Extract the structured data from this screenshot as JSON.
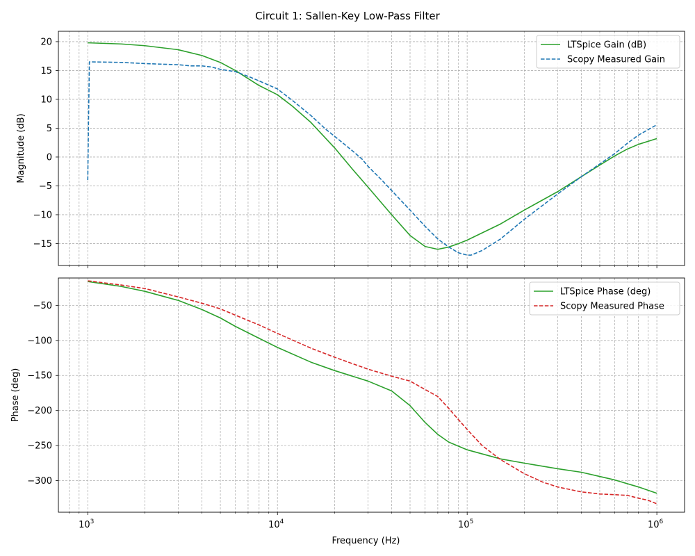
{
  "figure_title": "Circuit 1: Sallen-Key Low-Pass Filter",
  "chart_data": [
    {
      "type": "line",
      "panel": "top",
      "xlabel": "",
      "ylabel": "Magnitude (dB)",
      "xscale": "log",
      "xlim": [
        700,
        1400000
      ],
      "ylim": [
        -18.8,
        21.8
      ],
      "x_ticks": [
        1000,
        10000,
        100000,
        1000000
      ],
      "x_tick_labels": [
        [
          "10",
          "3"
        ],
        [
          "10",
          "4"
        ],
        [
          "10",
          "5"
        ],
        [
          "10",
          "6"
        ]
      ],
      "y_ticks": [
        20,
        15,
        10,
        5,
        0,
        -5,
        -10,
        -15
      ],
      "y_tick_labels": [
        "20",
        "15",
        "10",
        "5",
        "0",
        "−5",
        "−10",
        "−15"
      ],
      "grid": "on",
      "legend": "top-right",
      "series": [
        {
          "name": "LTSpice Gain (dB)",
          "color": "#2ca02c",
          "dash": "solid",
          "x": [
            1000,
            1500,
            2000,
            3000,
            4000,
            5000,
            6000,
            7000,
            8000,
            10000,
            12000,
            15000,
            20000,
            25000,
            30000,
            40000,
            50000,
            60000,
            70000,
            80000,
            90000,
            100000,
            150000,
            200000,
            300000,
            400000,
            500000,
            600000,
            700000,
            800000,
            1000000
          ],
          "y": [
            19.8,
            19.6,
            19.3,
            18.6,
            17.6,
            16.4,
            15.0,
            13.6,
            12.4,
            10.8,
            8.8,
            6.0,
            1.6,
            -2.2,
            -5.2,
            -10.0,
            -13.6,
            -15.5,
            -16.0,
            -15.6,
            -15.0,
            -14.4,
            -11.6,
            -9.2,
            -6.0,
            -3.4,
            -1.4,
            0.2,
            1.4,
            2.2,
            3.2
          ]
        },
        {
          "name": "Scopy Measured Gain",
          "color": "#1f77b4",
          "dash": "dashed",
          "x": [
            1000,
            1010,
            1020,
            1500,
            2000,
            3000,
            3500,
            4000,
            4500,
            5000,
            6000,
            7000,
            8000,
            10000,
            12000,
            15000,
            18000,
            20000,
            25000,
            28000,
            30000,
            35000,
            40000,
            45000,
            50000,
            60000,
            70000,
            80000,
            90000,
            100000,
            105000,
            120000,
            150000,
            200000,
            300000,
            400000,
            500000,
            600000,
            700000,
            800000,
            1000000
          ],
          "y": [
            -4.0,
            7.0,
            16.5,
            16.4,
            16.2,
            16.0,
            15.8,
            15.8,
            15.6,
            15.2,
            14.8,
            14.0,
            13.2,
            11.8,
            9.8,
            7.2,
            4.8,
            3.6,
            1.0,
            -0.4,
            -1.6,
            -3.8,
            -5.8,
            -7.6,
            -9.2,
            -12.0,
            -14.2,
            -15.6,
            -16.6,
            -17.0,
            -17.0,
            -16.2,
            -14.2,
            -10.8,
            -6.4,
            -3.4,
            -1.2,
            0.6,
            2.4,
            3.8,
            5.6
          ]
        }
      ]
    },
    {
      "type": "line",
      "panel": "bottom",
      "xlabel": "Frequency (Hz)",
      "ylabel": "Phase (deg)",
      "xscale": "log",
      "xlim": [
        700,
        1400000
      ],
      "ylim": [
        -345,
        -11
      ],
      "x_ticks": [
        1000,
        10000,
        100000,
        1000000
      ],
      "x_tick_labels": [
        [
          "10",
          "3"
        ],
        [
          "10",
          "4"
        ],
        [
          "10",
          "5"
        ],
        [
          "10",
          "6"
        ]
      ],
      "y_ticks": [
        -50,
        -100,
        -150,
        -200,
        -250,
        -300
      ],
      "y_tick_labels": [
        "−50",
        "−100",
        "−150",
        "−200",
        "−250",
        "−300"
      ],
      "grid": "on",
      "legend": "top-right",
      "series": [
        {
          "name": "LTSpice Phase (deg)",
          "color": "#2ca02c",
          "dash": "solid",
          "x": [
            1000,
            1500,
            2000,
            3000,
            4000,
            5000,
            6000,
            8000,
            10000,
            15000,
            20000,
            30000,
            40000,
            50000,
            60000,
            70000,
            80000,
            100000,
            150000,
            200000,
            300000,
            400000,
            500000,
            600000,
            800000,
            1000000
          ],
          "y": [
            -16,
            -23,
            -30,
            -43,
            -56,
            -68,
            -80,
            -97,
            -110,
            -131,
            -143,
            -158,
            -172,
            -193,
            -217,
            -234,
            -245,
            -256,
            -269,
            -275,
            -283,
            -288,
            -294,
            -299,
            -309,
            -318
          ]
        },
        {
          "name": "Scopy Measured Phase",
          "color": "#d62728",
          "dash": "dashed",
          "x": [
            1000,
            1500,
            2000,
            3000,
            4000,
            5000,
            6000,
            8000,
            10000,
            15000,
            20000,
            30000,
            40000,
            50000,
            60000,
            70000,
            80000,
            90000,
            100000,
            120000,
            150000,
            200000,
            250000,
            300000,
            400000,
            500000,
            600000,
            700000,
            800000,
            900000,
            1000000
          ],
          "y": [
            -15,
            -21,
            -26,
            -38,
            -47,
            -55,
            -64,
            -78,
            -90,
            -111,
            -124,
            -141,
            -151,
            -158,
            -170,
            -180,
            -197,
            -213,
            -227,
            -250,
            -270,
            -290,
            -302,
            -309,
            -316,
            -319,
            -320,
            -321,
            -325,
            -328,
            -333
          ]
        }
      ]
    }
  ]
}
